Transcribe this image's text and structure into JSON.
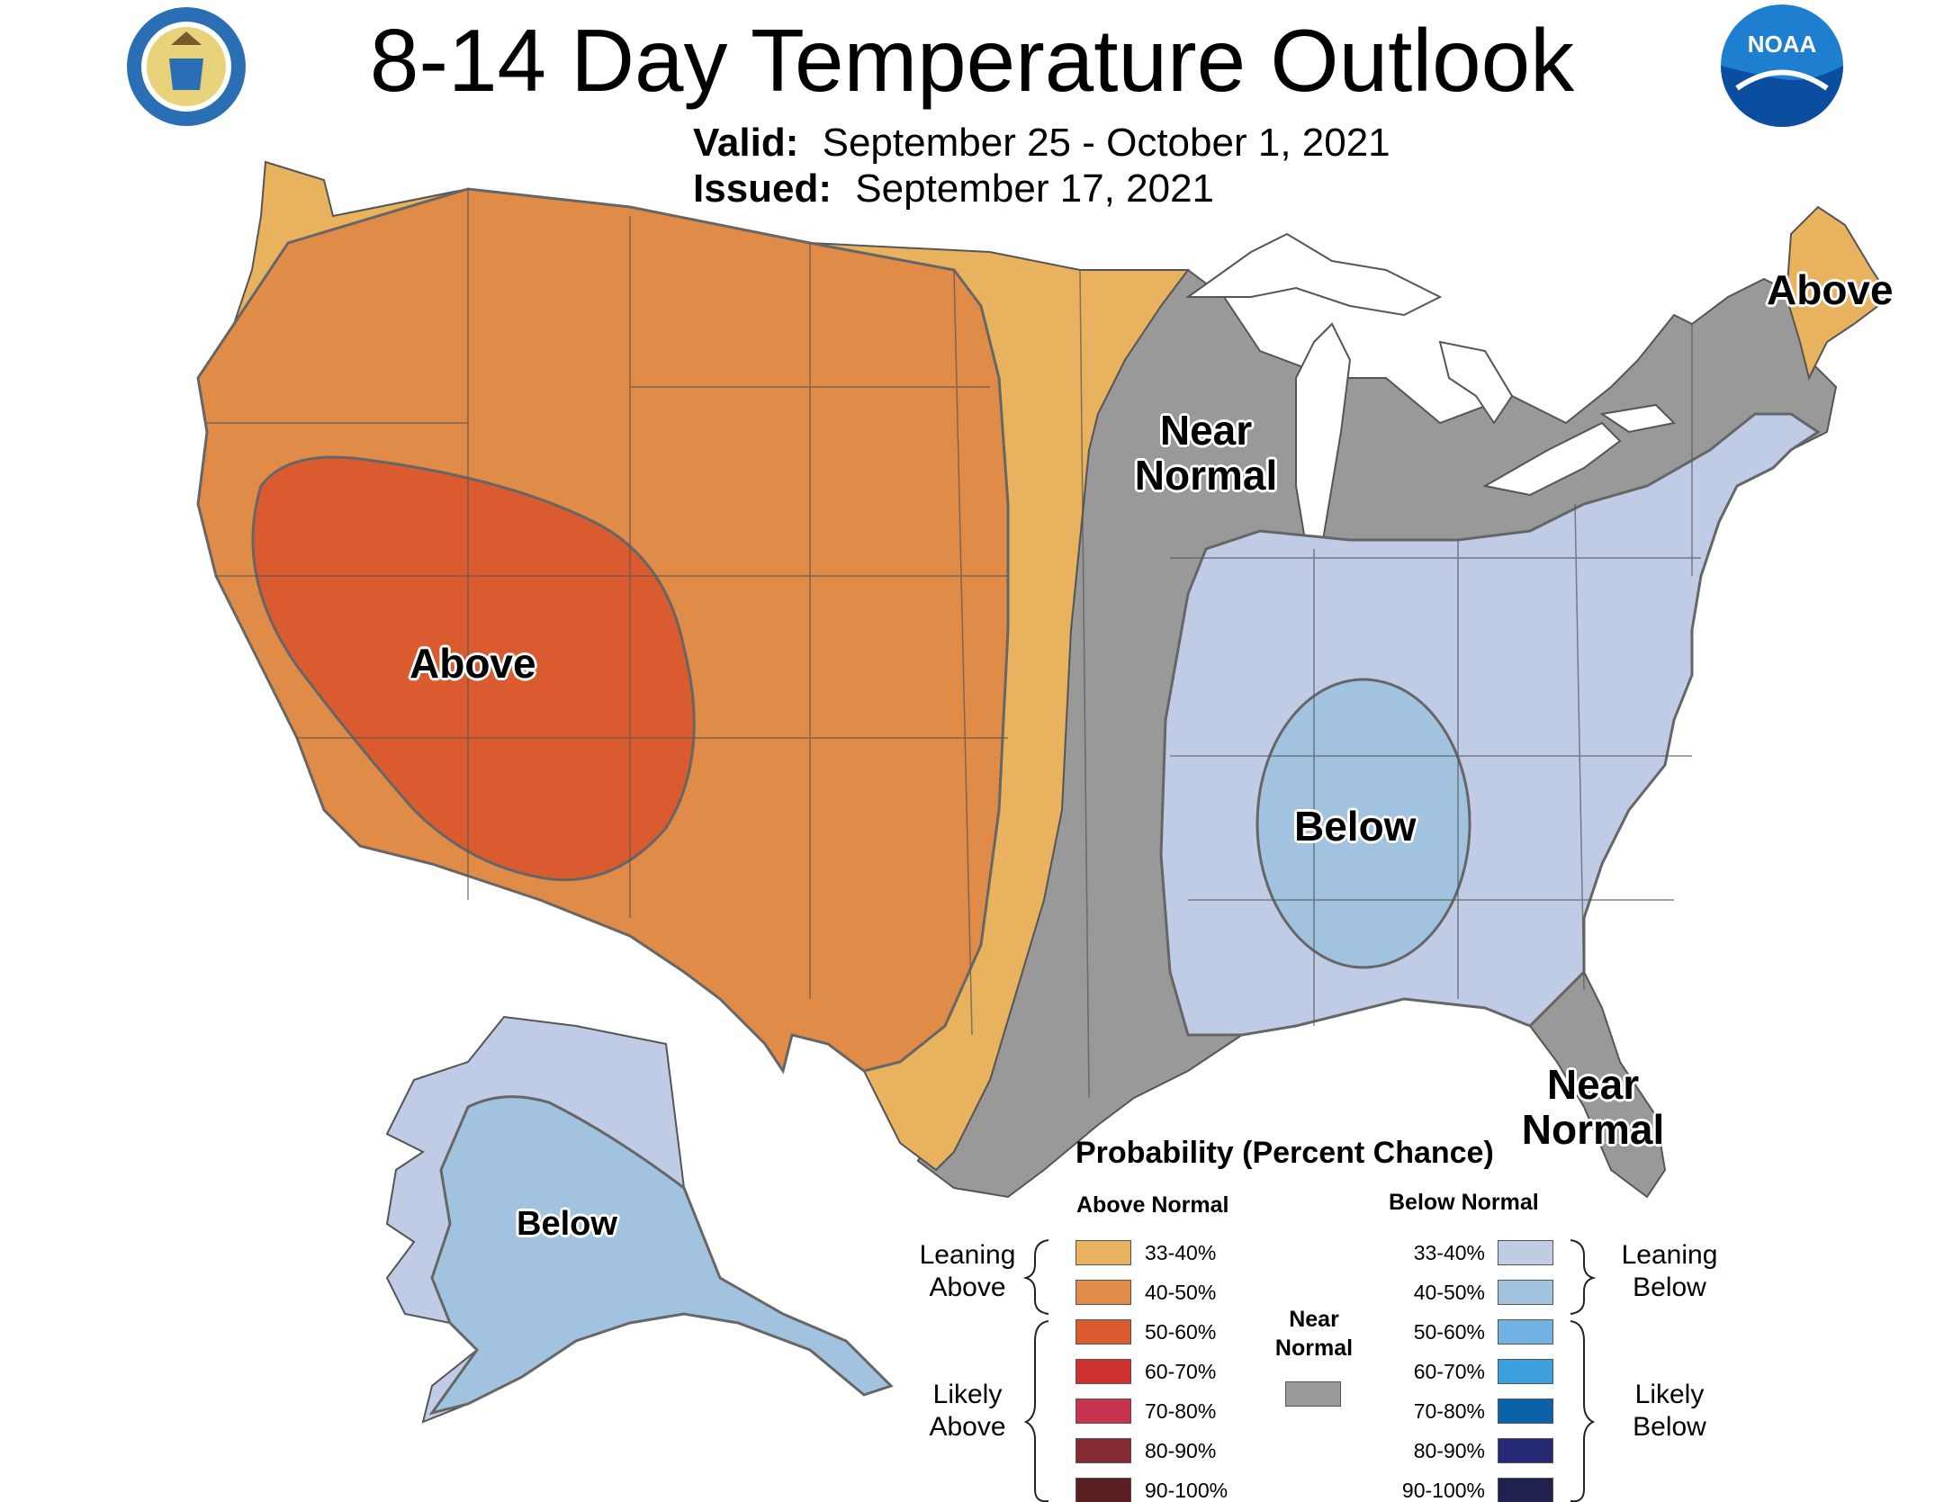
{
  "title": "8-14 Day Temperature Outlook",
  "valid_label": "Valid:",
  "valid_dates": "September 25 - October 1, 2021",
  "issued_label": "Issued:",
  "issued_date": "September 17, 2021",
  "logos": {
    "left": "department-of-commerce-seal",
    "right": "noaa-logo",
    "noaa_text": "NOAA"
  },
  "map_labels": {
    "west": "Above",
    "maine": "Above",
    "midwest_line1": "Near",
    "midwest_line2": "Normal",
    "southeast": "Below",
    "florida_line1": "Near",
    "florida_line2": "Normal",
    "alaska": "Below"
  },
  "legend": {
    "title": "Probability (Percent Chance)",
    "above_header": "Above Normal",
    "below_header": "Below Normal",
    "near_header_line1": "Near",
    "near_header_line2": "Normal",
    "leaning_above_line1": "Leaning",
    "leaning_above_line2": "Above",
    "likely_above_line1": "Likely",
    "likely_above_line2": "Above",
    "leaning_below_line1": "Leaning",
    "leaning_below_line2": "Below",
    "likely_below_line1": "Likely",
    "likely_below_line2": "Below",
    "above": [
      {
        "label": "33-40%",
        "color": "#e8b25f"
      },
      {
        "label": "40-50%",
        "color": "#e18b48"
      },
      {
        "label": "50-60%",
        "color": "#d95b2f"
      },
      {
        "label": "60-70%",
        "color": "#cf3030"
      },
      {
        "label": "70-80%",
        "color": "#c8334e"
      },
      {
        "label": "80-90%",
        "color": "#862a31"
      },
      {
        "label": "90-100%",
        "color": "#5a1f22"
      }
    ],
    "below": [
      {
        "label": "33-40%",
        "color": "#c0cbe5"
      },
      {
        "label": "40-50%",
        "color": "#a1c3e0"
      },
      {
        "label": "50-60%",
        "color": "#70b3e2"
      },
      {
        "label": "60-70%",
        "color": "#3ba0dd"
      },
      {
        "label": "70-80%",
        "color": "#0b62a8"
      },
      {
        "label": "80-90%",
        "color": "#262a74"
      },
      {
        "label": "90-100%",
        "color": "#20214f"
      }
    ],
    "near_color": "#999999"
  },
  "colors": {
    "leaning_above": "#e8b25f",
    "above_40_50": "#e18b48",
    "above_50_60": "#d95b2f",
    "near_normal": "#999999",
    "leaning_below": "#c0cbe5",
    "below_40_50": "#a1c3e0",
    "boundary": "#666666"
  }
}
